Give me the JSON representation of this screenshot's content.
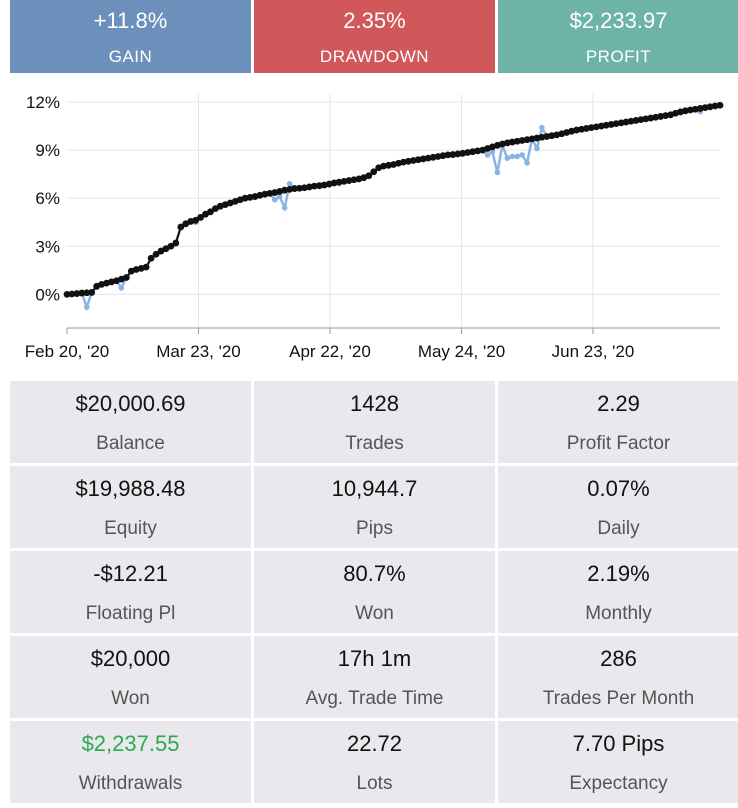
{
  "header": {
    "gain": {
      "value": "+11.8%",
      "label": "GAIN"
    },
    "drawdown": {
      "value": "2.35%",
      "label": "DRAWDOWN"
    },
    "profit": {
      "value": "$2,233.97",
      "label": "PROFIT"
    }
  },
  "colors": {
    "gain_tile": "#6c8fbc",
    "drawdown_tile": "#d0585a",
    "profit_tile": "#6eb3a8",
    "equity_line": "#8ab4e6",
    "balance_line": "#111111",
    "positive_value": "#2fa84f"
  },
  "chart_data": {
    "type": "line",
    "y_ticks": [
      "0%",
      "3%",
      "6%",
      "9%",
      "12%"
    ],
    "x_ticks": [
      "Feb 20, '20",
      "Mar 23, '20",
      "Apr 22, '20",
      "May 24, '20",
      "Jun 23, '20"
    ],
    "ylim": [
      -2.1,
      12.5
    ],
    "y_unit": "%",
    "grid": true,
    "series": [
      {
        "role": "balance",
        "color": "#111111",
        "markers": true,
        "values": [
          0,
          0.02,
          0.05,
          0.08,
          0.1,
          0.12,
          0.5,
          0.62,
          0.7,
          0.78,
          0.85,
          0.95,
          1.05,
          1.45,
          1.55,
          1.62,
          1.7,
          2.25,
          2.5,
          2.7,
          2.85,
          3.0,
          3.2,
          4.2,
          4.4,
          4.55,
          4.62,
          4.8,
          5.0,
          5.15,
          5.35,
          5.5,
          5.6,
          5.7,
          5.8,
          5.9,
          6.0,
          6.05,
          6.1,
          6.18,
          6.25,
          6.3,
          6.35,
          6.42,
          6.5,
          6.55,
          6.6,
          6.62,
          6.65,
          6.7,
          6.75,
          6.78,
          6.82,
          6.88,
          6.95,
          7.0,
          7.05,
          7.1,
          7.15,
          7.2,
          7.28,
          7.4,
          7.65,
          7.9,
          8.0,
          8.05,
          8.1,
          8.18,
          8.25,
          8.3,
          8.35,
          8.4,
          8.45,
          8.5,
          8.55,
          8.6,
          8.65,
          8.7,
          8.72,
          8.76,
          8.8,
          8.85,
          8.9,
          8.95,
          9.0,
          9.1,
          9.2,
          9.3,
          9.38,
          9.45,
          9.5,
          9.55,
          9.6,
          9.65,
          9.7,
          9.75,
          9.8,
          9.85,
          9.9,
          9.95,
          10.02,
          10.1,
          10.18,
          10.25,
          10.3,
          10.35,
          10.4,
          10.45,
          10.5,
          10.55,
          10.6,
          10.65,
          10.7,
          10.75,
          10.8,
          10.85,
          10.9,
          10.95,
          11.0,
          11.05,
          11.1,
          11.15,
          11.2,
          11.3,
          11.38,
          11.45,
          11.5,
          11.55,
          11.6,
          11.65,
          11.7,
          11.75,
          11.8
        ]
      },
      {
        "role": "equity",
        "color": "#8ab4e6",
        "markers": true,
        "values": [
          0,
          0.02,
          0.05,
          0.08,
          -0.8,
          0.12,
          0.5,
          0.62,
          0.7,
          0.78,
          0.85,
          0.4,
          1.05,
          1.45,
          1.55,
          1.62,
          1.7,
          2.25,
          2.5,
          2.7,
          2.85,
          3.0,
          3.2,
          4.2,
          4.4,
          4.55,
          4.5,
          4.8,
          5.0,
          5.15,
          5.35,
          5.5,
          5.6,
          5.7,
          5.8,
          5.9,
          6.0,
          6.05,
          6.1,
          6.18,
          6.25,
          6.3,
          5.9,
          6.1,
          5.4,
          6.9,
          6.6,
          6.62,
          6.65,
          6.7,
          6.75,
          6.78,
          6.82,
          6.88,
          6.95,
          6.9,
          7.05,
          7.1,
          7.15,
          7.2,
          7.28,
          7.4,
          7.65,
          7.9,
          8.0,
          8.05,
          8.1,
          8.18,
          8.25,
          8.3,
          8.35,
          8.4,
          8.45,
          8.5,
          8.55,
          8.6,
          8.65,
          8.7,
          8.72,
          8.76,
          8.8,
          8.85,
          8.9,
          8.95,
          9.0,
          8.7,
          8.9,
          7.6,
          9.3,
          8.5,
          8.6,
          8.6,
          8.7,
          8.2,
          9.7,
          9.1,
          10.4,
          9.85,
          9.9,
          9.95,
          10.02,
          10.1,
          10.18,
          10.25,
          10.3,
          10.35,
          10.4,
          10.45,
          10.5,
          10.55,
          10.6,
          10.65,
          10.7,
          10.75,
          10.8,
          10.85,
          10.9,
          10.95,
          11.0,
          11.05,
          11.1,
          11.15,
          11.2,
          11.3,
          11.38,
          11.45,
          11.5,
          11.55,
          11.4,
          11.65,
          11.7,
          11.75,
          11.8
        ]
      }
    ]
  },
  "stats": [
    [
      {
        "value": "$20,000.69",
        "label": "Balance"
      },
      {
        "value": "1428",
        "label": "Trades"
      },
      {
        "value": "2.29",
        "label": "Profit Factor"
      }
    ],
    [
      {
        "value": "$19,988.48",
        "label": "Equity"
      },
      {
        "value": "10,944.7",
        "label": "Pips"
      },
      {
        "value": "0.07%",
        "label": "Daily"
      }
    ],
    [
      {
        "value": "-$12.21",
        "label": "Floating Pl"
      },
      {
        "value": "80.7%",
        "label": "Won"
      },
      {
        "value": "2.19%",
        "label": "Monthly"
      }
    ],
    [
      {
        "value": "$20,000",
        "label": "Won"
      },
      {
        "value": "17h 1m",
        "label": "Avg. Trade Time"
      },
      {
        "value": "286",
        "label": "Trades Per Month"
      }
    ],
    [
      {
        "value": "$2,237.55",
        "label": "Withdrawals",
        "highlight": "positive"
      },
      {
        "value": "22.72",
        "label": "Lots"
      },
      {
        "value": "7.70 Pips",
        "label": "Expectancy"
      }
    ]
  ]
}
